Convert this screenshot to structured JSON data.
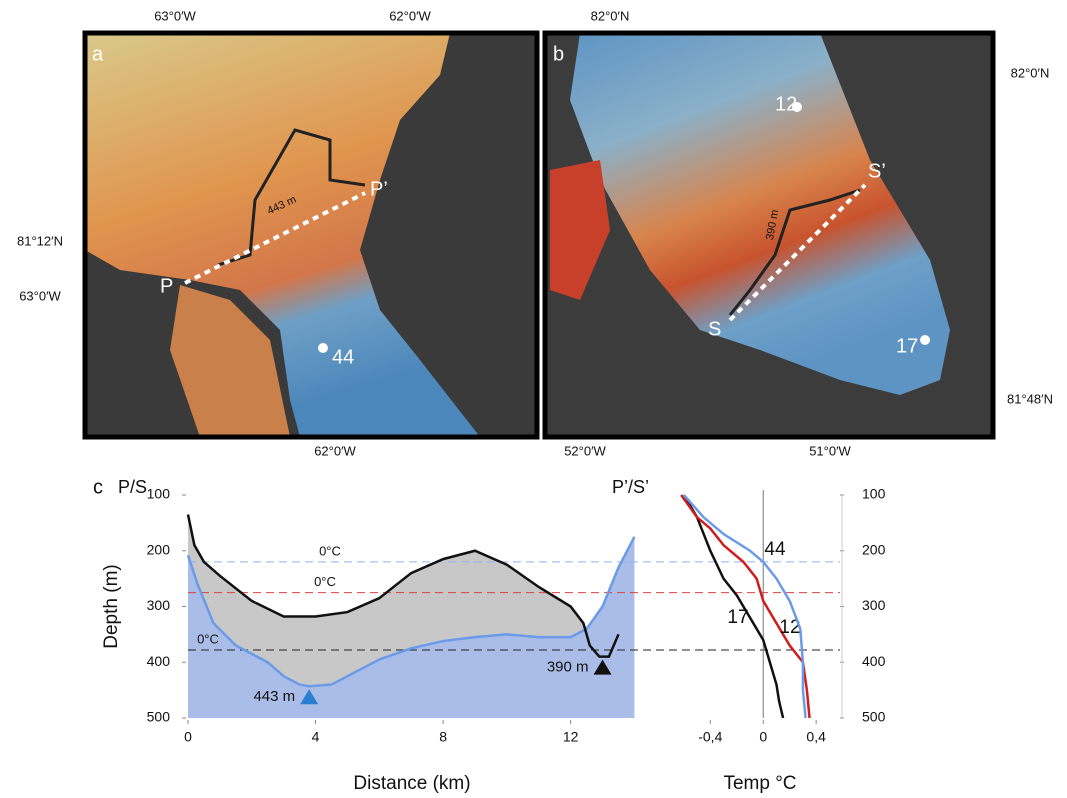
{
  "panel_a": {
    "label": "a",
    "top_ticks": [
      "63°0′W",
      "62°0′W"
    ],
    "bottom_ticks": [
      "62°0′W"
    ],
    "left_ticks": [
      "81°12′N",
      "63°0′W"
    ],
    "points": [
      "P",
      "P’"
    ],
    "depth_label": "443 m",
    "station": "44"
  },
  "panel_b": {
    "label": "b",
    "top_ticks": [
      "82°0′N"
    ],
    "right_ticks": [
      "82°0′N",
      "81°48′N"
    ],
    "bottom_ticks": [
      "52°0′W",
      "51°0′W"
    ],
    "points": [
      "S",
      "S’"
    ],
    "depth_label": "390 m",
    "stations": [
      "12",
      "17"
    ]
  },
  "chart_data": [
    {
      "type": "line",
      "label": "c",
      "left_label": "P/S",
      "right_label": "P’/S’",
      "y_label": "Depth (m)",
      "x_label": "Distance (km)",
      "xlim": [
        0,
        14.3
      ],
      "xticks": [
        0,
        4,
        8,
        12
      ],
      "ylim": [
        100,
        500
      ],
      "yticks": [
        100,
        200,
        300,
        400,
        500
      ],
      "y_inverted": true,
      "series": [
        {
          "color": "#6b9be8",
          "fill": "#a9bde8",
          "x": [
            0,
            0.3,
            0.8,
            1.5,
            2.5,
            3,
            3.5,
            3.8,
            4.5,
            5,
            5.5,
            6,
            7,
            8,
            9,
            10,
            11,
            12,
            12.5,
            13,
            13.5,
            14
          ],
          "values": [
            208,
            260,
            330,
            370,
            400,
            425,
            440,
            443,
            440,
            425,
            410,
            395,
            375,
            362,
            355,
            350,
            355,
            355,
            340,
            300,
            230,
            175
          ]
        },
        {
          "color": "#111111",
          "fill": "#c8c8c8",
          "x": [
            0,
            0.2,
            0.5,
            1,
            2,
            3,
            4,
            5,
            6,
            7,
            8,
            9,
            10,
            11,
            12,
            12.4,
            12.6,
            12.9,
            13.2,
            13.5
          ],
          "values": [
            135,
            190,
            220,
            245,
            290,
            318,
            318,
            310,
            285,
            240,
            215,
            200,
            225,
            265,
            300,
            330,
            370,
            390,
            390,
            350
          ]
        }
      ],
      "reference_lines": [
        {
          "value": 220,
          "label": "0°C",
          "color": "#8fb2ee"
        },
        {
          "value": 275,
          "label": "0°C",
          "color": "#e04040"
        },
        {
          "value": 378,
          "label": "0°C",
          "color": "#222222"
        }
      ],
      "markers": [
        {
          "x": 3.8,
          "value": 443,
          "label": "443 m",
          "color": "#2a7fd0"
        },
        {
          "x": 13,
          "value": 390,
          "label": "390 m",
          "color": "#111111"
        }
      ]
    },
    {
      "type": "line",
      "x_label": "Temp °C",
      "xlim": [
        -0.75,
        0.55
      ],
      "xticks": [
        {
          "value": -0.4,
          "label": "-0,4"
        },
        0,
        {
          "value": 0.4,
          "label": "0,4"
        }
      ],
      "ylim": [
        100,
        500
      ],
      "yticks": [
        100,
        200,
        300,
        400,
        500
      ],
      "y_inverted": true,
      "series": [
        {
          "name": "17",
          "color": "#111111",
          "x": [
            -0.6,
            -0.5,
            -0.45,
            -0.4,
            -0.3,
            -0.2,
            -0.1,
            0,
            0.05,
            0.1,
            0.12,
            0.15
          ],
          "values": [
            100,
            140,
            170,
            200,
            250,
            280,
            320,
            360,
            400,
            440,
            470,
            500
          ]
        },
        {
          "name": "12",
          "color": "#d01c1c",
          "x": [
            -0.62,
            -0.5,
            -0.4,
            -0.3,
            -0.15,
            -0.05,
            0,
            0.1,
            0.2,
            0.3,
            0.33,
            0.35
          ],
          "values": [
            100,
            140,
            160,
            190,
            220,
            250,
            290,
            330,
            370,
            400,
            450,
            500
          ]
        },
        {
          "name": "44",
          "color": "#6b9be8",
          "x": [
            -0.6,
            -0.45,
            -0.3,
            -0.1,
            0,
            0.1,
            0.2,
            0.28,
            0.3,
            0.3,
            0.32
          ],
          "values": [
            100,
            140,
            170,
            200,
            220,
            250,
            290,
            340,
            400,
            450,
            500
          ]
        }
      ]
    }
  ]
}
